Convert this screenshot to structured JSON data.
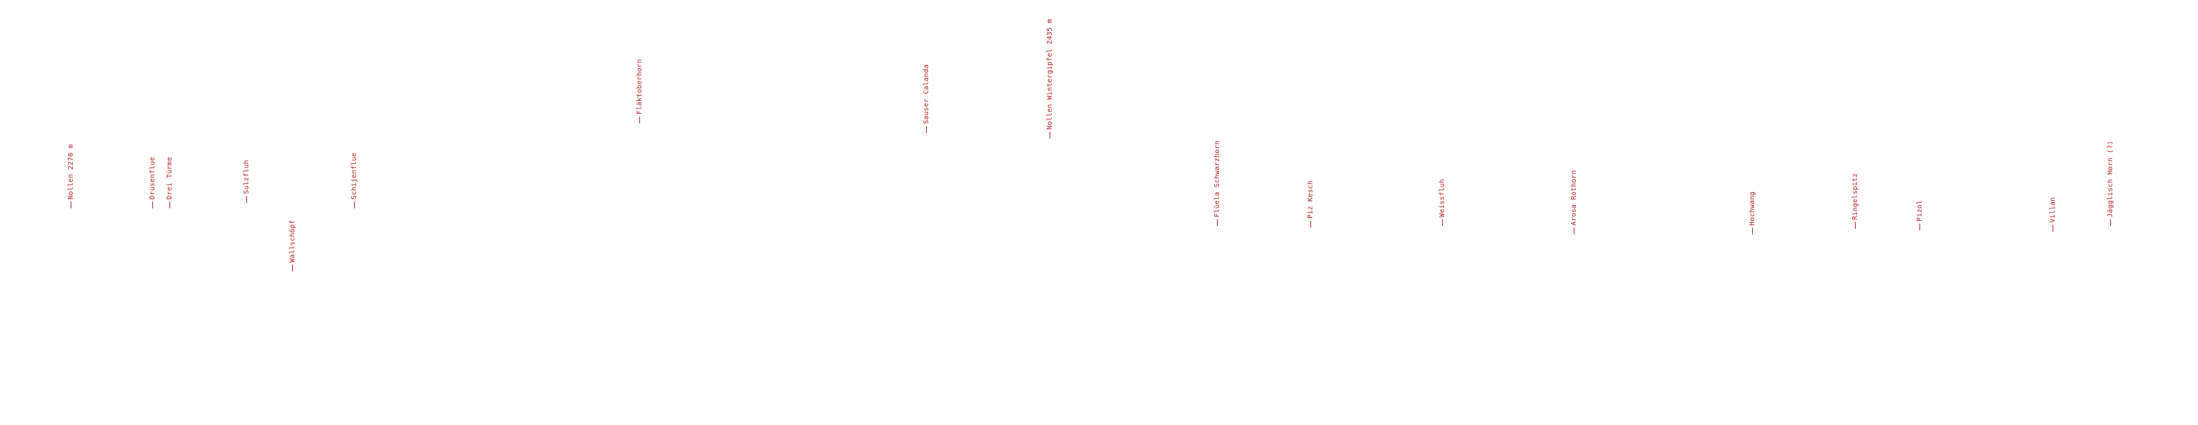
{
  "label_color": "#b31b1b",
  "peaks": [
    "Nollen 2270 m",
    "Drusenflue",
    "Drei Türme",
    "Sulzfluh",
    "Wallschöpf",
    "Schijenflue",
    "Fläktoberhorn",
    "Sauser Calanda",
    "Nollen Wintergipfel 2435 m",
    "Flüela Schwarzhorn",
    "Piz Kesch",
    "Weissfluh",
    "Arosa Rothorn",
    "Hochwang",
    "Ringelspitz",
    "Pizol",
    "Villan",
    "Jägglisch Horn (?)"
  ]
}
